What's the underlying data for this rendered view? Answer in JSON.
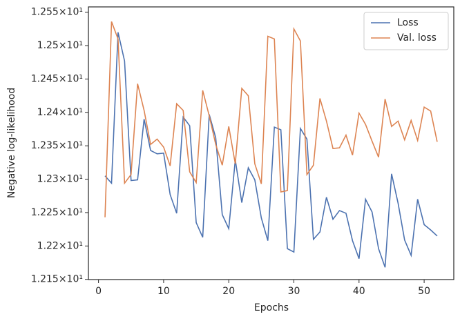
{
  "chart_data": {
    "type": "line",
    "x_label": "Epochs",
    "y_label": "Negative log-likelihood",
    "x": [
      1,
      2,
      3,
      4,
      5,
      6,
      7,
      8,
      9,
      10,
      11,
      12,
      13,
      14,
      15,
      16,
      17,
      18,
      19,
      20,
      21,
      22,
      23,
      24,
      25,
      26,
      27,
      28,
      29,
      30,
      31,
      32,
      33,
      34,
      35,
      36,
      37,
      38,
      39,
      40,
      41,
      42,
      43,
      44,
      45,
      46,
      47,
      48,
      49,
      50,
      51,
      52
    ],
    "series": [
      {
        "name": "Loss",
        "color": "#4c72b0",
        "values": [
          12.305,
          12.294,
          12.52,
          12.477,
          12.298,
          12.299,
          12.39,
          12.343,
          12.338,
          12.339,
          12.277,
          12.249,
          12.393,
          12.38,
          12.235,
          12.213,
          12.397,
          12.362,
          12.247,
          12.226,
          12.329,
          12.265,
          12.317,
          12.299,
          12.242,
          12.208,
          12.378,
          12.374,
          12.196,
          12.191,
          12.376,
          12.36,
          12.21,
          12.221,
          12.273,
          12.24,
          12.253,
          12.249,
          12.208,
          12.181,
          12.27,
          12.251,
          12.196,
          12.168,
          12.308,
          12.264,
          12.209,
          12.186,
          12.27,
          12.232,
          12.224,
          12.215
        ]
      },
      {
        "name": "Val. loss",
        "color": "#dd8452",
        "values": [
          12.243,
          12.536,
          12.51,
          12.294,
          12.307,
          12.443,
          12.403,
          12.352,
          12.36,
          12.348,
          12.32,
          12.413,
          12.403,
          12.311,
          12.295,
          12.433,
          12.395,
          12.352,
          12.321,
          12.379,
          12.323,
          12.436,
          12.425,
          12.323,
          12.293,
          12.514,
          12.51,
          12.281,
          12.283,
          12.525,
          12.507,
          12.307,
          12.321,
          12.421,
          12.387,
          12.346,
          12.347,
          12.366,
          12.336,
          12.399,
          12.382,
          12.357,
          12.333,
          12.42,
          12.379,
          12.387,
          12.359,
          12.388,
          12.358,
          12.408,
          12.402,
          12.356
        ]
      }
    ],
    "xlim": [
      -1.55,
      54.55
    ],
    "xticks": [
      0,
      10,
      20,
      30,
      40,
      50
    ],
    "ylim": [
      12.1497,
      12.558
    ],
    "yticks": [
      {
        "value": 12.15,
        "label": "1.215×10¹"
      },
      {
        "value": 12.2,
        "label": "1.22×10¹"
      },
      {
        "value": 12.25,
        "label": "1.225×10¹"
      },
      {
        "value": 12.3,
        "label": "1.23×10¹"
      },
      {
        "value": 12.35,
        "label": "1.235×10¹"
      },
      {
        "value": 12.4,
        "label": "1.24×10¹"
      },
      {
        "value": 12.45,
        "label": "1.245×10¹"
      },
      {
        "value": 12.5,
        "label": "1.25×10¹"
      },
      {
        "value": 12.55,
        "label": "1.255×10¹"
      }
    ],
    "legend": "upper right"
  }
}
